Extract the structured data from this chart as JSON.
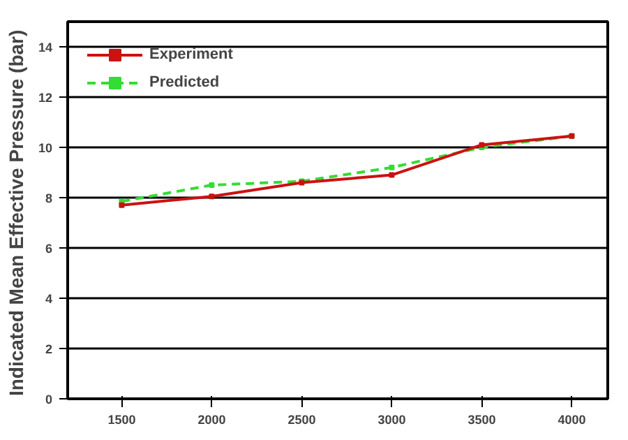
{
  "chart_data": {
    "type": "line",
    "ylabel": "Indicated Mean Effective  Pressure (bar)",
    "x": [
      1500,
      2000,
      2500,
      3000,
      3500,
      4000
    ],
    "series": [
      {
        "name": "Experiment",
        "color": "#cc1111",
        "line_style": "solid",
        "values": [
          7.7,
          8.05,
          8.6,
          8.9,
          10.1,
          10.45
        ]
      },
      {
        "name": "Predicted",
        "color": "#33dd33",
        "line_style": "dashed",
        "values": [
          7.85,
          8.5,
          8.65,
          9.2,
          10.0,
          10.45
        ]
      }
    ],
    "xlim": [
      1200,
      4200
    ],
    "xticks": [
      1500,
      2000,
      2500,
      3000,
      3500,
      4000
    ],
    "ylim": [
      0,
      15
    ],
    "yticks": [
      0,
      2,
      4,
      6,
      8,
      10,
      12,
      14
    ],
    "grid": "y",
    "legend": "top left",
    "marker": "square"
  }
}
